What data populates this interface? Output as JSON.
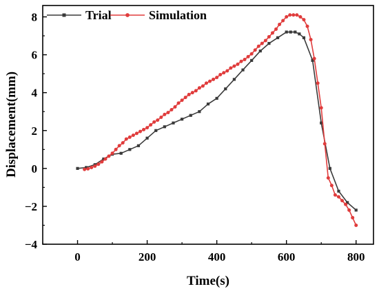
{
  "chart_data": {
    "type": "line",
    "title": "",
    "xlabel": "Time(s)",
    "ylabel": "Displacement(mm)",
    "xlim": [
      -100,
      850
    ],
    "ylim": [
      -4,
      8.6
    ],
    "xticks": [
      0,
      200,
      400,
      600,
      800
    ],
    "yticks": [
      -4,
      -2,
      0,
      2,
      4,
      6,
      8
    ],
    "xtick_labels": [
      "0",
      "200",
      "400",
      "600",
      "800"
    ],
    "ytick_labels": [
      "−4",
      "−2",
      "0",
      "2",
      "4",
      "6",
      "8"
    ],
    "grid": false,
    "legend_position": "top-left",
    "series": [
      {
        "name": "Trial",
        "color": "#3a3a3a",
        "marker": "square",
        "x": [
          0,
          25,
          50,
          75,
          100,
          125,
          150,
          175,
          200,
          225,
          250,
          275,
          300,
          325,
          350,
          375,
          400,
          425,
          450,
          475,
          500,
          525,
          550,
          575,
          600,
          612,
          625,
          637,
          650,
          675,
          700,
          725,
          750,
          775,
          800
        ],
        "y": [
          0.0,
          0.05,
          0.2,
          0.5,
          0.75,
          0.8,
          1.0,
          1.2,
          1.6,
          2.0,
          2.2,
          2.4,
          2.6,
          2.8,
          3.0,
          3.4,
          3.7,
          4.2,
          4.7,
          5.2,
          5.7,
          6.2,
          6.6,
          6.9,
          7.2,
          7.2,
          7.2,
          7.1,
          6.9,
          5.7,
          2.4,
          0.0,
          -1.2,
          -1.8,
          -2.2
        ]
      },
      {
        "name": "Simulation",
        "color": "#e03c3c",
        "marker": "circle",
        "x": [
          20,
          30,
          40,
          50,
          60,
          70,
          80,
          90,
          100,
          110,
          120,
          130,
          140,
          150,
          160,
          170,
          180,
          190,
          200,
          210,
          220,
          230,
          240,
          250,
          260,
          270,
          280,
          290,
          300,
          310,
          320,
          330,
          340,
          350,
          360,
          370,
          380,
          390,
          400,
          410,
          420,
          430,
          440,
          450,
          460,
          470,
          480,
          490,
          500,
          510,
          520,
          530,
          540,
          550,
          560,
          570,
          580,
          590,
          600,
          610,
          620,
          630,
          640,
          650,
          660,
          670,
          680,
          690,
          700,
          710,
          720,
          730,
          740,
          750,
          760,
          770,
          780,
          790,
          800
        ],
        "y": [
          -0.05,
          -0.02,
          0.05,
          0.12,
          0.22,
          0.35,
          0.5,
          0.65,
          0.8,
          1.0,
          1.2,
          1.35,
          1.55,
          1.65,
          1.75,
          1.85,
          1.95,
          2.05,
          2.15,
          2.3,
          2.45,
          2.55,
          2.7,
          2.85,
          2.95,
          3.1,
          3.25,
          3.45,
          3.6,
          3.75,
          3.9,
          4.0,
          4.1,
          4.25,
          4.35,
          4.5,
          4.6,
          4.7,
          4.8,
          4.95,
          5.05,
          5.15,
          5.3,
          5.4,
          5.5,
          5.65,
          5.75,
          5.9,
          6.05,
          6.25,
          6.45,
          6.6,
          6.75,
          6.95,
          7.15,
          7.35,
          7.6,
          7.8,
          8.0,
          8.1,
          8.1,
          8.1,
          8.0,
          7.85,
          7.5,
          6.8,
          5.8,
          4.5,
          3.2,
          1.3,
          -0.5,
          -0.9,
          -1.4,
          -1.5,
          -1.7,
          -1.9,
          -2.2,
          -2.6,
          -3.0
        ]
      }
    ]
  }
}
